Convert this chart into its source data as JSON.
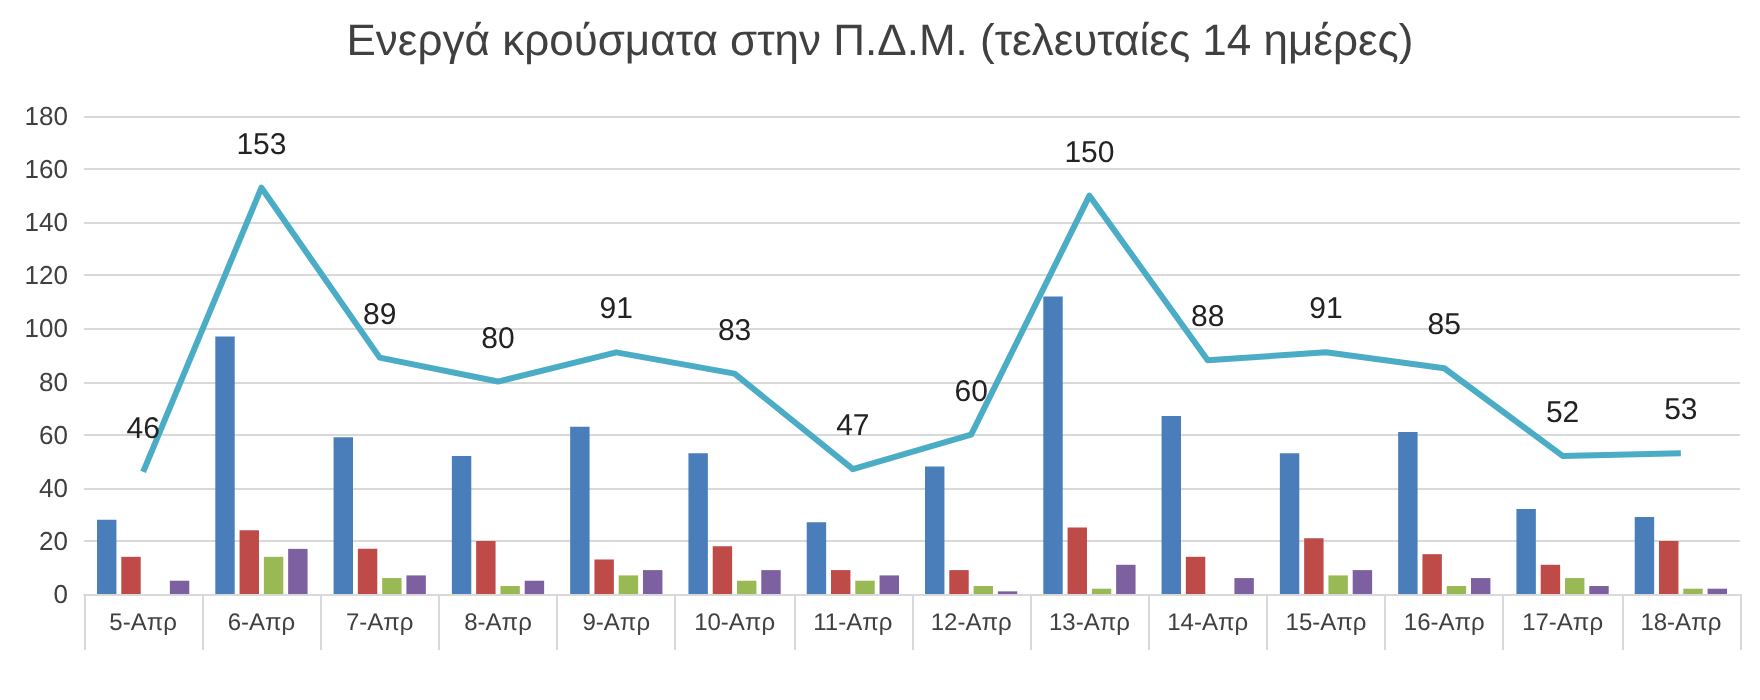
{
  "chart_data": {
    "type": "bar",
    "title": "Ενεργά κρούσματα στην Π.Δ.Μ. (τελευταίες 14 ημέρες)",
    "categories": [
      "5-Απρ",
      "6-Απρ",
      "7-Απρ",
      "8-Απρ",
      "9-Απρ",
      "10-Απρ",
      "11-Απρ",
      "12-Απρ",
      "13-Απρ",
      "14-Απρ",
      "15-Απρ",
      "16-Απρ",
      "17-Απρ",
      "18-Απρ"
    ],
    "series": [
      {
        "color": "#4a7ebb",
        "values": [
          28,
          97,
          59,
          52,
          63,
          53,
          27,
          48,
          112,
          67,
          53,
          61,
          32,
          29
        ]
      },
      {
        "color": "#be4b48",
        "values": [
          14,
          24,
          17,
          20,
          13,
          18,
          9,
          9,
          25,
          14,
          21,
          15,
          11,
          20
        ]
      },
      {
        "color": "#98b954",
        "values": [
          0,
          14,
          6,
          3,
          7,
          5,
          5,
          3,
          2,
          0,
          7,
          3,
          6,
          2
        ]
      },
      {
        "color": "#7d60a0",
        "values": [
          5,
          17,
          7,
          5,
          9,
          9,
          7,
          1,
          11,
          6,
          9,
          6,
          3,
          2
        ]
      },
      {
        "type": "line",
        "color": "#4bacc6",
        "values": [
          46,
          153,
          89,
          80,
          91,
          83,
          47,
          60,
          150,
          88,
          91,
          85,
          52,
          53
        ],
        "value_labels": [
          "46",
          "153",
          "89",
          "80",
          "91",
          "83",
          "47",
          "60",
          "150",
          "88",
          "91",
          "85",
          "52",
          "53"
        ]
      }
    ],
    "ylim": [
      0,
      180
    ],
    "yticks": [
      0,
      20,
      40,
      60,
      80,
      100,
      120,
      140,
      160,
      180
    ],
    "grid": "y",
    "marker": "none"
  }
}
